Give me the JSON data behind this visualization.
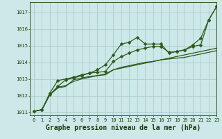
{
  "title": "Graphe pression niveau de la mer (hPa)",
  "bg_color": "#cde8e8",
  "plot_bg_color": "#cde8e8",
  "grid_color": "#aacccc",
  "line_color": "#2d5a1b",
  "xlim": [
    -0.5,
    23
  ],
  "ylim": [
    1010.8,
    1017.6
  ],
  "yticks": [
    1011,
    1012,
    1013,
    1014,
    1015,
    1016,
    1017
  ],
  "xticks": [
    0,
    1,
    2,
    3,
    4,
    5,
    6,
    7,
    8,
    9,
    10,
    11,
    12,
    13,
    14,
    15,
    16,
    17,
    18,
    19,
    20,
    21,
    22,
    23
  ],
  "s1_x": [
    0,
    1,
    2,
    3,
    4,
    5,
    6,
    7,
    8,
    9,
    10,
    11,
    12,
    13,
    14,
    15,
    16,
    17,
    18,
    19,
    20,
    21,
    22,
    23
  ],
  "s1_y": [
    1011.05,
    1011.15,
    1012.05,
    1012.45,
    1012.55,
    1012.95,
    1013.05,
    1013.15,
    1013.2,
    1013.25,
    1013.55,
    1013.65,
    1013.75,
    1013.85,
    1013.95,
    1014.05,
    1014.15,
    1014.25,
    1014.35,
    1014.45,
    1014.55,
    1014.65,
    1014.75,
    1014.85
  ],
  "s2_x": [
    0,
    1,
    2,
    3,
    4,
    5,
    6,
    7,
    8,
    9,
    10,
    11,
    12,
    13,
    14,
    15,
    16,
    17,
    18,
    19,
    20,
    21,
    22,
    23
  ],
  "s2_y": [
    1011.05,
    1011.15,
    1012.05,
    1012.55,
    1012.95,
    1013.05,
    1013.2,
    1013.35,
    1013.4,
    1013.45,
    1014.05,
    1014.35,
    1014.55,
    1014.75,
    1014.85,
    1014.95,
    1014.95,
    1014.6,
    1014.65,
    1014.75,
    1014.95,
    1015.05,
    1016.55,
    1017.35
  ],
  "s3_x": [
    0,
    1,
    2,
    3,
    4,
    5,
    6,
    7,
    8,
    9,
    10,
    11,
    12,
    13,
    14,
    15,
    16,
    17,
    18,
    19,
    20,
    21,
    22,
    23
  ],
  "s3_y": [
    1011.05,
    1011.15,
    1012.15,
    1012.9,
    1013.0,
    1013.1,
    1013.25,
    1013.35,
    1013.55,
    1013.85,
    1014.45,
    1015.1,
    1015.2,
    1015.5,
    1015.1,
    1015.1,
    1015.1,
    1014.55,
    1014.65,
    1014.75,
    1015.05,
    1015.45,
    1016.55,
    1017.35
  ],
  "s4_x": [
    0,
    1,
    2,
    3,
    4,
    5,
    6,
    7,
    8,
    9,
    10,
    11,
    12,
    13,
    14,
    15,
    16,
    17,
    18,
    19,
    20,
    21,
    22,
    23
  ],
  "s4_y": [
    1011.05,
    1011.15,
    1012.05,
    1012.5,
    1012.6,
    1012.85,
    1013.0,
    1013.1,
    1013.2,
    1013.3,
    1013.55,
    1013.7,
    1013.8,
    1013.9,
    1014.0,
    1014.05,
    1014.15,
    1014.2,
    1014.25,
    1014.3,
    1014.4,
    1014.5,
    1014.6,
    1014.7
  ],
  "marker": "D",
  "marker_size": 2.5,
  "linewidth": 0.9,
  "title_fontsize": 7,
  "tick_fontsize": 5,
  "title_color": "#2d5a1b",
  "label_color": "#1a3a0a"
}
